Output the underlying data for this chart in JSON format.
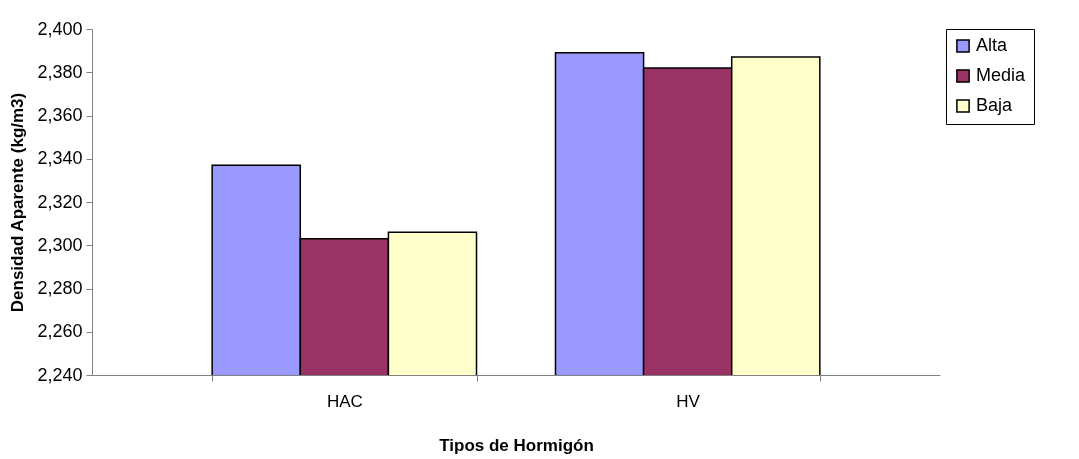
{
  "chart_data": {
    "type": "bar",
    "xlabel": "Tipos de Hormigón",
    "ylabel": "Densidad Aparente (kg/m3)",
    "categories": [
      "HAC",
      "HV"
    ],
    "series": [
      {
        "name": "Alta",
        "color": "#9999ff",
        "values": [
          2337,
          2389
        ]
      },
      {
        "name": "Media",
        "color": "#993366",
        "values": [
          2303,
          2382
        ]
      },
      {
        "name": "Baja",
        "color": "#ffffcc",
        "values": [
          2306,
          2387
        ]
      }
    ],
    "ylim": [
      2240,
      2400
    ],
    "yticks": [
      {
        "value": 2240,
        "label": "2,240"
      },
      {
        "value": 2260,
        "label": "2,260"
      },
      {
        "value": 2280,
        "label": "2,280"
      },
      {
        "value": 2300,
        "label": "2,300"
      },
      {
        "value": 2320,
        "label": "2,320"
      },
      {
        "value": 2340,
        "label": "2,340"
      },
      {
        "value": 2360,
        "label": "2,360"
      },
      {
        "value": 2380,
        "label": "2,380"
      },
      {
        "value": 2400,
        "label": "2,400"
      }
    ],
    "grid": false,
    "legend": "right"
  }
}
